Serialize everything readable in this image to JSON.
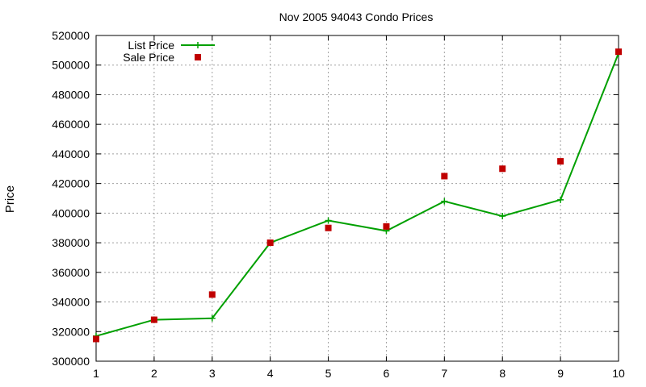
{
  "chart_data": {
    "type": "line",
    "title": "Nov 2005 94043 Condo Prices",
    "xlabel": "",
    "ylabel": "Price",
    "xlim": [
      1,
      10
    ],
    "ylim": [
      300000,
      520000
    ],
    "x_ticks": [
      "1",
      "2",
      "3",
      "4",
      "5",
      "6",
      "7",
      "8",
      "9",
      "10"
    ],
    "y_ticks": [
      "300000",
      "320000",
      "340000",
      "360000",
      "380000",
      "400000",
      "420000",
      "440000",
      "460000",
      "480000",
      "500000",
      "520000"
    ],
    "grid": true,
    "legend_position": "top-left",
    "series": [
      {
        "name": "List Price",
        "style": "linespoints",
        "color": "#00a000",
        "marker": "plus",
        "x": [
          1,
          2,
          3,
          4,
          5,
          6,
          7,
          8,
          9,
          10
        ],
        "values": [
          317000,
          328000,
          329000,
          380000,
          395000,
          388000,
          408000,
          398000,
          409000,
          508000
        ]
      },
      {
        "name": "Sale Price",
        "style": "points",
        "color": "#c00000",
        "marker": "square",
        "x": [
          1,
          2,
          3,
          4,
          5,
          6,
          7,
          8,
          9,
          10
        ],
        "values": [
          315000,
          328000,
          345000,
          380000,
          390000,
          391000,
          425000,
          430000,
          435000,
          509000
        ]
      }
    ]
  }
}
